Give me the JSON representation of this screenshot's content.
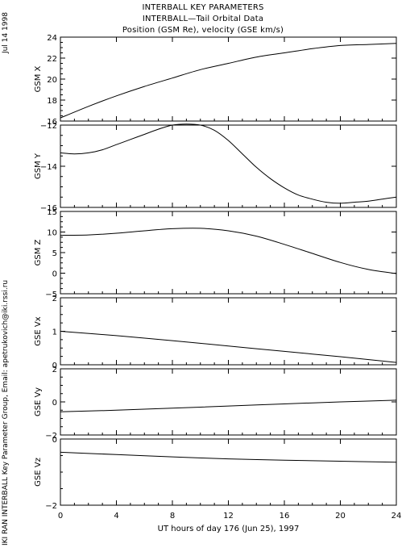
{
  "header": {
    "line1": "INTERBALL KEY PARAMETERS",
    "line2": "INTERBALL—Tail Orbital Data",
    "line3": "Position (GSM Re), velocity (GSE km/s)"
  },
  "side": {
    "date": "Jul 14 1998",
    "credit": "IKI RAN INTERBALL Key Parameter Group, Email: apetrukovich@iki.rssi.ru"
  },
  "chart_data": [
    {
      "type": "line",
      "ylabel": "GSM X",
      "ylim": [
        16,
        24
      ],
      "yticks": [
        16,
        18,
        20,
        22,
        24
      ],
      "x": [
        0,
        2,
        4,
        6,
        8,
        10,
        12,
        14,
        16,
        18,
        20,
        22,
        24
      ],
      "values": [
        16.3,
        17.4,
        18.4,
        19.3,
        20.1,
        20.9,
        21.5,
        22.1,
        22.5,
        22.9,
        23.2,
        23.3,
        23.4
      ]
    },
    {
      "type": "line",
      "ylabel": "GSM Y",
      "ylim": [
        -16,
        -12
      ],
      "yticks": [
        -16,
        -14,
        -12
      ],
      "x": [
        0,
        1,
        2,
        3,
        4,
        5,
        6,
        7,
        8,
        9,
        10,
        11,
        12,
        13,
        14,
        15,
        16,
        17,
        18,
        19,
        20,
        21,
        22,
        23,
        24
      ],
      "values": [
        -13.35,
        -13.4,
        -13.35,
        -13.2,
        -12.95,
        -12.7,
        -12.45,
        -12.2,
        -12.0,
        -11.95,
        -12.0,
        -12.25,
        -12.75,
        -13.4,
        -14.05,
        -14.6,
        -15.05,
        -15.4,
        -15.6,
        -15.75,
        -15.8,
        -15.75,
        -15.7,
        -15.6,
        -15.5
      ]
    },
    {
      "type": "line",
      "ylabel": "GSM Z",
      "ylim": [
        -5,
        15
      ],
      "yticks": [
        -5,
        0,
        5,
        10,
        15
      ],
      "x": [
        0,
        2,
        4,
        6,
        8,
        10,
        12,
        14,
        16,
        18,
        20,
        22,
        24
      ],
      "values": [
        9.2,
        9.3,
        9.7,
        10.3,
        10.8,
        10.9,
        10.3,
        9.0,
        7.0,
        4.8,
        2.6,
        0.9,
        -0.1
      ]
    },
    {
      "type": "line",
      "ylabel": "GSE Vx",
      "ylim": [
        0,
        2
      ],
      "yticks": [
        0,
        1,
        2
      ],
      "x": [
        0,
        4,
        8,
        12,
        16,
        20,
        24
      ],
      "values": [
        1.0,
        0.87,
        0.72,
        0.56,
        0.4,
        0.24,
        0.07
      ]
    },
    {
      "type": "line",
      "ylabel": "GSE Vy",
      "ylim": [
        -2,
        2
      ],
      "yticks": [
        -2,
        0,
        2
      ],
      "x": [
        0,
        4,
        8,
        12,
        16,
        20,
        24
      ],
      "values": [
        -0.6,
        -0.5,
        -0.38,
        -0.25,
        -0.12,
        0.0,
        0.1
      ]
    },
    {
      "type": "line",
      "ylabel": "GSE Vz",
      "ylim": [
        -2,
        0
      ],
      "yticks": [
        -2,
        0
      ],
      "x": [
        0,
        4,
        8,
        12,
        16,
        20,
        24
      ],
      "values": [
        -0.4,
        -0.47,
        -0.54,
        -0.6,
        -0.64,
        -0.67,
        -0.7
      ]
    }
  ],
  "xaxis": {
    "xlim": [
      0,
      24
    ],
    "ticks": [
      0,
      4,
      8,
      12,
      16,
      20,
      24
    ],
    "label": "UT hours of day 176 (Jun 25), 1997"
  }
}
